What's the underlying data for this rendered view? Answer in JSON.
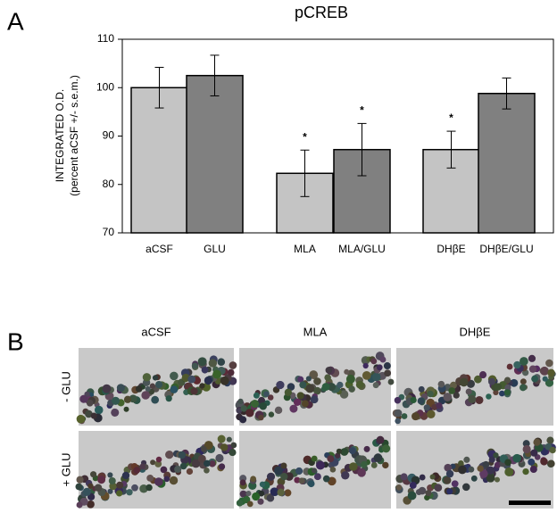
{
  "panel_a": {
    "label": "A"
  },
  "panel_b": {
    "label": "B",
    "columns": [
      "aCSF",
      "MLA",
      "DHβE"
    ],
    "rows": [
      "- GLU",
      "+ GLU"
    ]
  },
  "chart_data": {
    "type": "bar",
    "title": "pCREB",
    "y_label": [
      "INTEGRATED O.D.",
      "(percent aCSF +/- s.e.m.)"
    ],
    "categories": [
      "aCSF",
      "GLU",
      "MLA",
      "MLA/GLU",
      "DHβE",
      "DHβE/GLU"
    ],
    "values": [
      100,
      102.5,
      82.3,
      87.2,
      87.2,
      98.8
    ],
    "errors": [
      4.2,
      4.2,
      4.8,
      5.4,
      3.8,
      3.2
    ],
    "colors": [
      "#c4c4c4",
      "#808080",
      "#c4c4c4",
      "#808080",
      "#c4c4c4",
      "#808080"
    ],
    "annotations": [
      {
        "label": "*",
        "category": "MLA"
      },
      {
        "label": "*",
        "category": "MLA/GLU"
      },
      {
        "label": "*",
        "category": "DHβE"
      }
    ],
    "ylim": [
      70,
      110
    ],
    "yticks": [
      70,
      80,
      90,
      100,
      110
    ]
  }
}
